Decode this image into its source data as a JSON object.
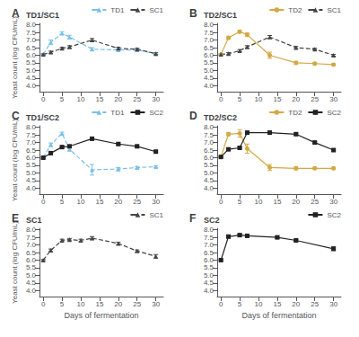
{
  "chart_data": [
    {
      "type": "line",
      "title": "TD1/SC1",
      "annotations": [
        "A"
      ],
      "ylabel": "Yeast count (log CFU/mL)",
      "xlim": [
        -1,
        32
      ],
      "xticks": [
        0,
        5,
        10,
        15,
        20,
        25,
        30
      ],
      "ylim": [
        3.6,
        8.1
      ],
      "yticks": [
        {
          "value": 4,
          "label": "4.0"
        },
        4.5,
        {
          "value": 5,
          "label": "5.0"
        },
        5.5,
        {
          "value": 6,
          "label": "6.0"
        },
        6.5,
        {
          "value": 7,
          "label": "7.0"
        },
        7.5,
        {
          "value": 8,
          "label": "8.0"
        }
      ],
      "grid": false,
      "legend": "upper right",
      "series": [
        {
          "name": "TD1",
          "color": "#7bbfea",
          "marker": "triangle",
          "line_style": "dashed",
          "x": [
            0,
            2,
            5,
            7,
            13,
            20,
            25,
            30
          ],
          "values": [
            6.05,
            6.85,
            7.45,
            7.2,
            6.4,
            6.35,
            6.35,
            6.1
          ],
          "yerr": [
            0.04,
            0.15,
            0.1,
            0.12,
            0.1,
            0.07,
            0.06,
            0.06
          ]
        },
        {
          "name": "SC1",
          "color": "#444444",
          "marker": "triangle",
          "line_style": "dashed",
          "x": [
            0,
            2,
            5,
            7,
            13,
            20,
            25,
            30
          ],
          "values": [
            6.05,
            6.2,
            6.45,
            6.55,
            7.0,
            6.45,
            6.4,
            6.1
          ],
          "yerr": [
            0.04,
            0.07,
            0.07,
            0.08,
            0.1,
            0.08,
            0.06,
            0.06
          ]
        }
      ]
    },
    {
      "type": "line",
      "title": "TD2/SC1",
      "annotations": [
        "B"
      ],
      "xlim": [
        -1,
        32
      ],
      "xticks": [
        0,
        5,
        10,
        15,
        20,
        25,
        30
      ],
      "ylim": [
        3.6,
        8.1
      ],
      "yticks": [
        {
          "value": 4,
          "label": "4.0"
        },
        4.5,
        {
          "value": 5,
          "label": "5.0"
        },
        5.5,
        {
          "value": 6,
          "label": "6.0"
        },
        6.5,
        {
          "value": 7,
          "label": "7.0"
        },
        7.5,
        {
          "value": 8,
          "label": "8.0"
        }
      ],
      "grid": false,
      "legend": "upper right",
      "series": [
        {
          "name": "TD2",
          "color": "#d4a843",
          "marker": "circle",
          "line_style": "solid",
          "x": [
            0,
            2,
            5,
            7,
            13,
            20,
            25,
            30
          ],
          "values": [
            6.05,
            7.15,
            7.55,
            7.35,
            6.0,
            5.5,
            5.45,
            5.38
          ],
          "yerr": [
            0.04,
            0.1,
            0.08,
            0.12,
            0.2,
            0.1,
            0.07,
            0.06
          ]
        },
        {
          "name": "SC1",
          "color": "#444444",
          "marker": "triangle",
          "line_style": "dashed",
          "x": [
            0,
            2,
            5,
            7,
            13,
            20,
            25,
            30
          ],
          "values": [
            6.05,
            6.1,
            6.3,
            6.55,
            7.2,
            6.5,
            6.4,
            6.0
          ],
          "yerr": [
            0.04,
            0.07,
            0.07,
            0.08,
            0.1,
            0.08,
            0.06,
            0.06
          ]
        }
      ]
    },
    {
      "type": "line",
      "title": "TD1/SC2",
      "annotations": [
        "C"
      ],
      "ylabel": "Yeast count (log CFU/mL)",
      "xlim": [
        -1,
        32
      ],
      "xticks": [
        0,
        5,
        10,
        15,
        20,
        25,
        30
      ],
      "ylim": [
        3.6,
        8.1
      ],
      "yticks": [
        {
          "value": 4,
          "label": "4.0"
        },
        4.5,
        {
          "value": 5,
          "label": "5.0"
        },
        5.5,
        {
          "value": 6,
          "label": "6.0"
        },
        6.5,
        {
          "value": 7,
          "label": "7.0"
        },
        7.5,
        {
          "value": 8,
          "label": "8.0"
        }
      ],
      "grid": false,
      "legend": "upper right",
      "series": [
        {
          "name": "TD1",
          "color": "#7bbfea",
          "marker": "triangle",
          "line_style": "dashed",
          "x": [
            0,
            2,
            5,
            7,
            13,
            20,
            25,
            30
          ],
          "values": [
            6.0,
            6.85,
            7.6,
            6.55,
            5.2,
            5.25,
            5.35,
            5.4
          ],
          "yerr": [
            0.04,
            0.12,
            0.08,
            0.1,
            0.35,
            0.1,
            0.07,
            0.06
          ]
        },
        {
          "name": "SC2",
          "color": "#222222",
          "marker": "square",
          "line_style": "solid",
          "x": [
            0,
            2,
            5,
            7,
            13,
            20,
            25,
            30
          ],
          "values": [
            6.0,
            6.3,
            6.7,
            6.75,
            7.25,
            6.9,
            6.75,
            6.4
          ],
          "yerr": [
            0.04,
            0.08,
            0.07,
            0.08,
            0.1,
            0.08,
            0.06,
            0.06
          ]
        }
      ]
    },
    {
      "type": "line",
      "title": "TD2/SC2",
      "annotations": [
        "D"
      ],
      "xlim": [
        -1,
        32
      ],
      "xticks": [
        0,
        5,
        10,
        15,
        20,
        25,
        30
      ],
      "ylim": [
        3.6,
        8.1
      ],
      "yticks": [
        {
          "value": 4,
          "label": "4.0"
        },
        4.5,
        {
          "value": 5,
          "label": "5.0"
        },
        5.5,
        {
          "value": 6,
          "label": "6.0"
        },
        6.5,
        {
          "value": 7,
          "label": "7.0"
        },
        7.5,
        {
          "value": 8,
          "label": "8.0"
        }
      ],
      "grid": false,
      "legend": "upper right",
      "series": [
        {
          "name": "TD2",
          "color": "#d4a843",
          "marker": "circle",
          "line_style": "solid",
          "x": [
            0,
            2,
            5,
            7,
            13,
            20,
            25,
            30
          ],
          "values": [
            6.05,
            7.55,
            7.6,
            6.6,
            5.35,
            5.3,
            5.3,
            5.3
          ],
          "yerr": [
            0.04,
            0.1,
            0.25,
            0.3,
            0.2,
            0.1,
            0.07,
            0.06
          ]
        },
        {
          "name": "SC2",
          "color": "#222222",
          "marker": "square",
          "line_style": "solid",
          "x": [
            0,
            2,
            5,
            7,
            13,
            20,
            25,
            30
          ],
          "values": [
            6.05,
            6.55,
            6.65,
            7.65,
            7.65,
            7.55,
            7.0,
            6.5
          ],
          "yerr": [
            0.04,
            0.07,
            0.07,
            0.08,
            0.1,
            0.08,
            0.06,
            0.06
          ]
        }
      ]
    },
    {
      "type": "line",
      "title": "SC1",
      "annotations": [
        "E"
      ],
      "ylabel": "Yeast count (log CFU/mL)",
      "xlabel": "Days of fermentation",
      "xlim": [
        -1,
        32
      ],
      "xticks": [
        0,
        5,
        10,
        15,
        20,
        25,
        30
      ],
      "ylim": [
        3.6,
        8.1
      ],
      "yticks": [
        {
          "value": 4,
          "label": "4.0"
        },
        4.5,
        {
          "value": 5,
          "label": "5.0"
        },
        5.5,
        {
          "value": 6,
          "label": "6.0"
        },
        6.5,
        {
          "value": 7,
          "label": "7.0"
        },
        7.5,
        {
          "value": 8,
          "label": "8.0"
        }
      ],
      "grid": false,
      "legend": "upper right",
      "series": [
        {
          "name": "SC1",
          "color": "#444444",
          "marker": "triangle",
          "line_style": "dashed",
          "x": [
            0,
            2,
            5,
            7,
            10,
            13,
            20,
            25,
            30
          ],
          "values": [
            6.0,
            6.65,
            7.3,
            7.35,
            7.3,
            7.45,
            7.1,
            6.6,
            6.25
          ],
          "yerr": [
            0.04,
            0.08,
            0.08,
            0.08,
            0.08,
            0.1,
            0.08,
            0.07,
            0.12
          ]
        }
      ]
    },
    {
      "type": "line",
      "title": "SC2",
      "annotations": [
        "F"
      ],
      "xlabel": "Days of fermentation",
      "xlim": [
        -1,
        32
      ],
      "xticks": [
        0,
        5,
        10,
        15,
        20,
        25,
        30
      ],
      "ylim": [
        3.6,
        8.1
      ],
      "yticks": [
        {
          "value": 4,
          "label": "4.0"
        },
        4.5,
        {
          "value": 5,
          "label": "5.0"
        },
        5.5,
        {
          "value": 6,
          "label": "6.0"
        },
        6.5,
        {
          "value": 7,
          "label": "7.0"
        },
        7.5,
        {
          "value": 8,
          "label": "8.0"
        }
      ],
      "grid": false,
      "legend": "upper right",
      "series": [
        {
          "name": "SC2",
          "color": "#222222",
          "marker": "square",
          "line_style": "solid",
          "x": [
            0,
            2,
            5,
            7,
            15,
            20,
            30
          ],
          "values": [
            6.0,
            7.55,
            7.65,
            7.6,
            7.5,
            7.3,
            6.75
          ],
          "yerr": [
            0.04,
            0.08,
            0.07,
            0.07,
            0.08,
            0.07,
            0.12
          ]
        }
      ]
    }
  ]
}
